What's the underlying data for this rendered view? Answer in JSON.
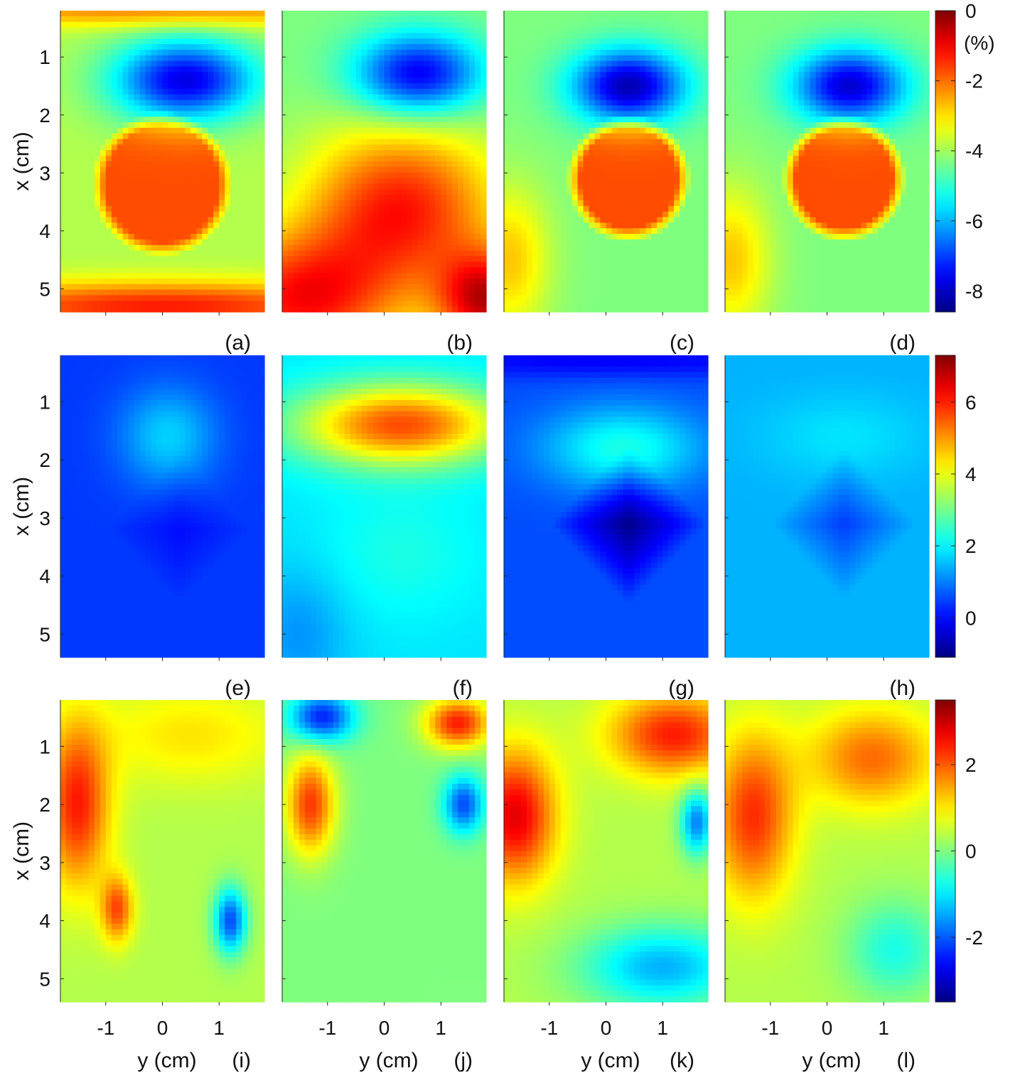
{
  "figure": {
    "x_axis_label": "y (cm)",
    "y_axis_label": "x (cm)",
    "unit_label": "(%)"
  },
  "chart_data": [
    {
      "type": "heatmap",
      "panels": [
        "(a)",
        "(b)",
        "(c)",
        "(d)"
      ],
      "xlim": [
        -1.8,
        1.8
      ],
      "ylim": [
        0.2,
        5.4
      ],
      "x_ticks": [
        -1,
        0,
        1
      ],
      "y_ticks": [
        1,
        2,
        3,
        4,
        5
      ],
      "colorbar": {
        "range": [
          -8.6,
          0
        ],
        "ticks": [
          0,
          -2,
          -4,
          -6,
          -8
        ],
        "unit": "(%)"
      },
      "colormap": "jet",
      "grid": false
    },
    {
      "type": "heatmap",
      "panels": [
        "(e)",
        "(f)",
        "(g)",
        "(h)"
      ],
      "xlim": [
        -1.8,
        1.8
      ],
      "ylim": [
        0.2,
        5.4
      ],
      "x_ticks": [
        -1,
        0,
        1
      ],
      "y_ticks": [
        1,
        2,
        3,
        4,
        5
      ],
      "colorbar": {
        "range": [
          -1.1,
          7.3
        ],
        "ticks": [
          6,
          4,
          2,
          0
        ]
      },
      "colormap": "jet",
      "grid": false
    },
    {
      "type": "heatmap",
      "panels": [
        "(i)",
        "(j)",
        "(k)",
        "(l)"
      ],
      "xlim": [
        -1.8,
        1.8
      ],
      "ylim": [
        0.2,
        5.4
      ],
      "x_ticks": [
        -1,
        0,
        1
      ],
      "y_ticks": [
        1,
        2,
        3,
        4,
        5
      ],
      "colorbar": {
        "range": [
          -3.5,
          3.5
        ],
        "ticks": [
          2,
          0,
          -2
        ]
      },
      "colormap": "jet",
      "grid": false
    }
  ]
}
